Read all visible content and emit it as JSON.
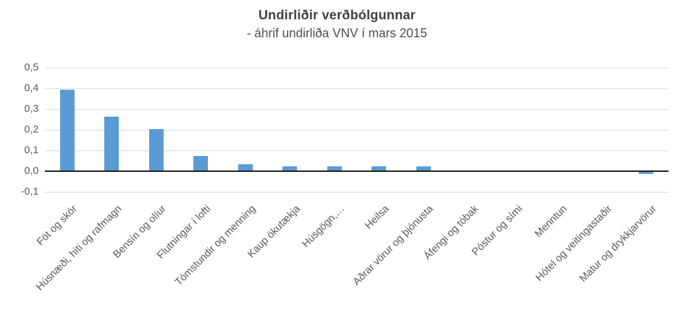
{
  "chart_data": {
    "type": "bar",
    "title": "Undirliðir verðbólgunnar",
    "subtitle": "- áhrif undirliða VNV í mars 2015",
    "categories": [
      "Föt og skór",
      "Húsnæði, hiti og rafmagn",
      "Bensín og olíur",
      "Flutningar í lofti",
      "Tómstundir og menning",
      "Kaup ökutækja",
      "Húsgögn,…",
      "Heilsa",
      "Aðrar vörur og þjónusta",
      "Áfengi og tóbak",
      "Póstur og sími",
      "Menntun",
      "Hótel og veitingastaðir",
      "Matur og drykkjarvörur"
    ],
    "values": [
      0.39,
      0.26,
      0.2,
      0.07,
      0.03,
      0.02,
      0.02,
      0.02,
      0.02,
      0.0,
      0.0,
      0.0,
      0.0,
      -0.01
    ],
    "xlabel": "",
    "ylabel": "",
    "ylim": [
      -0.1,
      0.5
    ],
    "ytick_step": 0.1,
    "yticks": [
      {
        "value": 0.5,
        "label": "0,5"
      },
      {
        "value": 0.4,
        "label": "0,4"
      },
      {
        "value": 0.3,
        "label": "0,3"
      },
      {
        "value": 0.2,
        "label": "0,2"
      },
      {
        "value": 0.1,
        "label": "0,1"
      },
      {
        "value": 0.0,
        "label": "0,0"
      },
      {
        "value": -0.1,
        "label": "-0,1"
      }
    ],
    "grid": true,
    "legend_position": "none",
    "colors": {
      "bar": "#5B9BD5",
      "gridline": "#D9D9D9",
      "zero_axis": "#1A1A1A",
      "tick_text": "#595959",
      "title_text": "#404040",
      "background": "#FFFFFF"
    }
  }
}
